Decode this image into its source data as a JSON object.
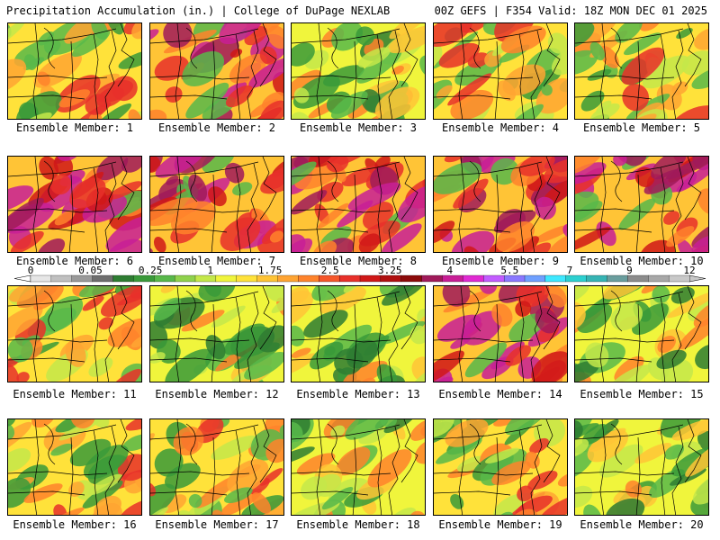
{
  "header": {
    "left": "Precipitation Accumulation (in.) | College of DuPage NEXLAB",
    "right": "00Z GEFS | F354 Valid: 18Z MON DEC 01 2025"
  },
  "members": [
    {
      "label": "Ensemble Member: 1",
      "tone": "mixed"
    },
    {
      "label": "Ensemble Member: 2",
      "tone": "wet"
    },
    {
      "label": "Ensemble Member: 3",
      "tone": "dry"
    },
    {
      "label": "Ensemble Member: 4",
      "tone": "mixed"
    },
    {
      "label": "Ensemble Member: 5",
      "tone": "mixed"
    },
    {
      "label": "Ensemble Member: 6",
      "tone": "wet"
    },
    {
      "label": "Ensemble Member: 7",
      "tone": "wet"
    },
    {
      "label": "Ensemble Member: 8",
      "tone": "wet"
    },
    {
      "label": "Ensemble Member: 9",
      "tone": "wet"
    },
    {
      "label": "Ensemble Member: 10",
      "tone": "wet"
    },
    {
      "label": "Ensemble Member: 11",
      "tone": "mixed"
    },
    {
      "label": "Ensemble Member: 12",
      "tone": "dry"
    },
    {
      "label": "Ensemble Member: 13",
      "tone": "dry"
    },
    {
      "label": "Ensemble Member: 14",
      "tone": "wet"
    },
    {
      "label": "Ensemble Member: 15",
      "tone": "dry"
    },
    {
      "label": "Ensemble Member: 16",
      "tone": "mixed"
    },
    {
      "label": "Ensemble Member: 17",
      "tone": "mixed"
    },
    {
      "label": "Ensemble Member: 18",
      "tone": "dry"
    },
    {
      "label": "Ensemble Member: 19",
      "tone": "mixed"
    },
    {
      "label": "Ensemble Member: 20",
      "tone": "dry"
    }
  ],
  "colorbar": {
    "ticks": [
      "0",
      "0.05",
      "0.25",
      "1",
      "1.75",
      "2.5",
      "3.25",
      "4",
      "5.5",
      "7",
      "9",
      "12"
    ],
    "colors": [
      "#e6e6e6",
      "#c0c0c0",
      "#9a9a9a",
      "#6e6e6e",
      "#2e7d32",
      "#3a9a3a",
      "#58b84a",
      "#8fd24c",
      "#c4e84a",
      "#f0f53c",
      "#ffe23a",
      "#ffc436",
      "#ffa432",
      "#ff832c",
      "#f5562a",
      "#e8302a",
      "#d01818",
      "#b01010",
      "#8c0a0a",
      "#a01a5a",
      "#c81e96",
      "#e02ad2",
      "#c25cff",
      "#8a78ff",
      "#6fa0ff",
      "#3ee8ff",
      "#2cd0d0",
      "#36b4b4",
      "#6a9e9e",
      "#8c8c8c",
      "#a8a8a8",
      "#c8c8c8"
    ]
  }
}
